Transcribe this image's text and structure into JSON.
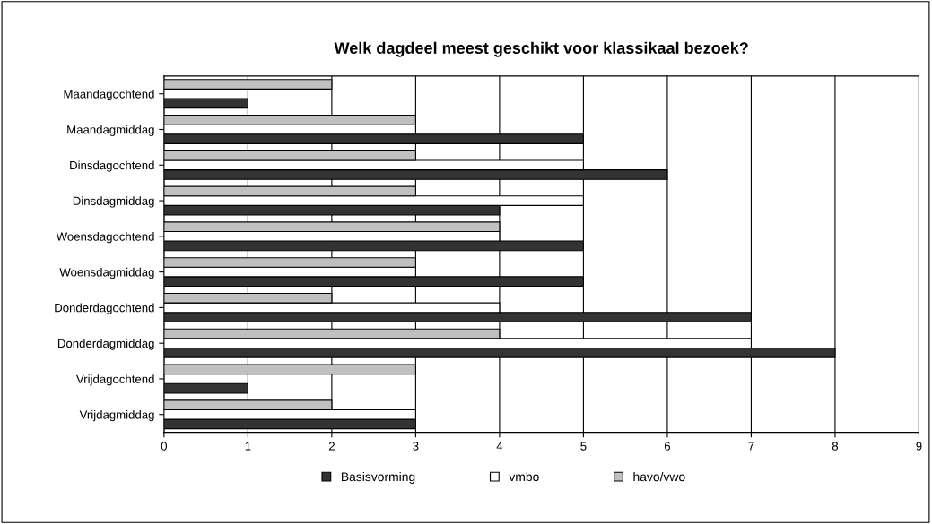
{
  "chart_data": {
    "type": "bar",
    "orientation": "horizontal",
    "title": "Welk dagdeel meest geschikt voor klassikaal bezoek?",
    "categories": [
      "Maandagochtend",
      "Maandagmiddag",
      "Dinsdagochtend",
      "Dinsdagmiddag",
      "Woensdagochtend",
      "Woensdagmiddag",
      "Donderdagochtend",
      "Donderdagmiddag",
      "Vrijdagochtend",
      "Vrijdagmiddag"
    ],
    "series": [
      {
        "name": "Basisvorming",
        "color": "#333333",
        "values": [
          1,
          5,
          6,
          4,
          5,
          5,
          7,
          8,
          1,
          3
        ]
      },
      {
        "name": "vmbo",
        "color": "#ffffff",
        "values": [
          1,
          3,
          5,
          5,
          4,
          3,
          4,
          7,
          null,
          3
        ]
      },
      {
        "name": "havo/vwo",
        "color": "#c0c0c0",
        "values": [
          2,
          3,
          3,
          3,
          4,
          3,
          2,
          4,
          3,
          2
        ]
      }
    ],
    "xlim": [
      0,
      9
    ],
    "xticks": [
      0,
      1,
      2,
      3,
      4,
      5,
      6,
      7,
      8,
      9
    ],
    "grid": "x",
    "legend": "bottom"
  }
}
